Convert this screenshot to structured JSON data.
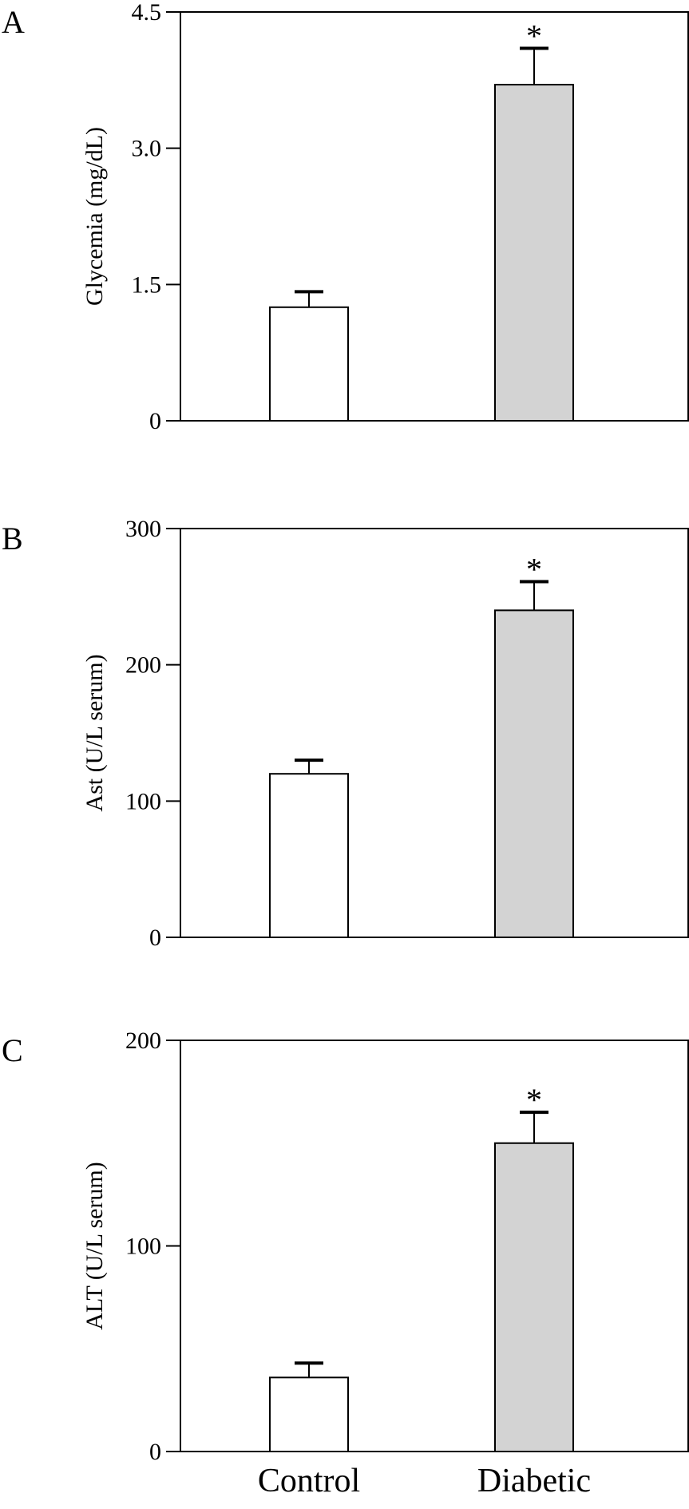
{
  "colors": {
    "axis": "#000000",
    "control_fill": "#ffffff",
    "diabetic_fill": "#d3d3d3"
  },
  "categories": [
    "Control",
    "Diabetic"
  ],
  "chart_data": [
    {
      "type": "bar",
      "panel_label": "A",
      "ylabel": "Glycemia (mg/dL)",
      "categories": [
        "Control",
        "Diabetic"
      ],
      "values": [
        1.25,
        3.7
      ],
      "errors": [
        0.17,
        0.4
      ],
      "significance": [
        "",
        "*"
      ],
      "ylim": [
        0,
        4.5
      ],
      "yticks": [
        0,
        1.5,
        3.0,
        4.5
      ],
      "ytick_labels": [
        "0",
        "1.5",
        "3.0",
        "4.5"
      ],
      "grid": false
    },
    {
      "type": "bar",
      "panel_label": "B",
      "ylabel": "Ast (U/L serum)",
      "categories": [
        "Control",
        "Diabetic"
      ],
      "values": [
        120,
        240
      ],
      "errors": [
        10,
        21
      ],
      "significance": [
        "",
        "*"
      ],
      "ylim": [
        0,
        300
      ],
      "yticks": [
        0,
        100,
        200,
        300
      ],
      "ytick_labels": [
        "0",
        "100",
        "200",
        "300"
      ],
      "grid": false
    },
    {
      "type": "bar",
      "panel_label": "C",
      "ylabel": "ALT (U/L serum)",
      "categories": [
        "Control",
        "Diabetic"
      ],
      "values": [
        36,
        150
      ],
      "errors": [
        7,
        15
      ],
      "significance": [
        "",
        "*"
      ],
      "ylim": [
        0,
        200
      ],
      "yticks": [
        0,
        100,
        200
      ],
      "ytick_labels": [
        "0",
        "100",
        "200"
      ],
      "grid": false
    }
  ]
}
